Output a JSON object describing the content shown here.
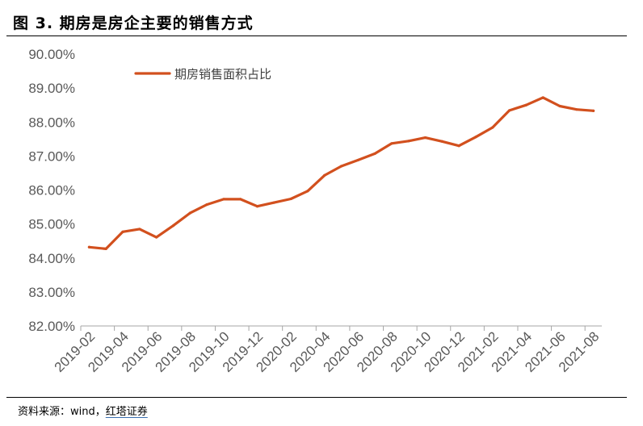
{
  "figure": {
    "title": "图 3. 期房是房企主要的销售方式",
    "source_prefix": "资料来源：wind，",
    "source_brand": "红塔证券"
  },
  "colors": {
    "series": "#D2501E",
    "axis": "#A6A6A6",
    "tick_text": "#595959"
  },
  "chart_data": {
    "type": "line",
    "title": "",
    "xlabel": "",
    "ylabel": "",
    "ylim": [
      0.82,
      0.9
    ],
    "y_ticks": [
      "82.00%",
      "83.00%",
      "84.00%",
      "85.00%",
      "86.00%",
      "87.00%",
      "88.00%",
      "89.00%",
      "90.00%"
    ],
    "x_tick_labels": [
      "2019-02",
      "2019-04",
      "2019-06",
      "2019-08",
      "2019-10",
      "2019-12",
      "2020-02",
      "2020-04",
      "2020-06",
      "2020-08",
      "2020-10",
      "2020-12",
      "2021-02",
      "2021-04",
      "2021-06",
      "2021-08"
    ],
    "grid": false,
    "legend_position": "top-left",
    "categories": [
      "2019-02",
      "2019-03",
      "2019-04",
      "2019-05",
      "2019-06",
      "2019-07",
      "2019-08",
      "2019-09",
      "2019-10",
      "2019-11",
      "2019-12",
      "2020-01",
      "2020-02",
      "2020-03",
      "2020-04",
      "2020-05",
      "2020-06",
      "2020-07",
      "2020-08",
      "2020-09",
      "2020-10",
      "2020-11",
      "2020-12",
      "2021-01",
      "2021-02",
      "2021-03",
      "2021-04",
      "2021-05",
      "2021-06",
      "2021-07",
      "2021-08"
    ],
    "series": [
      {
        "name": "期房销售面积占比",
        "values": [
          0.8432,
          0.8427,
          0.8477,
          0.8485,
          0.8461,
          0.8495,
          0.8532,
          0.8557,
          0.8573,
          0.8573,
          0.8552,
          0.8563,
          0.8574,
          0.8597,
          0.8643,
          0.867,
          0.8688,
          0.8707,
          0.8737,
          0.8744,
          0.8754,
          0.8743,
          0.873,
          0.8756,
          0.8784,
          0.8834,
          0.885,
          0.8872,
          0.8847,
          0.8837,
          0.8833
        ]
      }
    ]
  }
}
